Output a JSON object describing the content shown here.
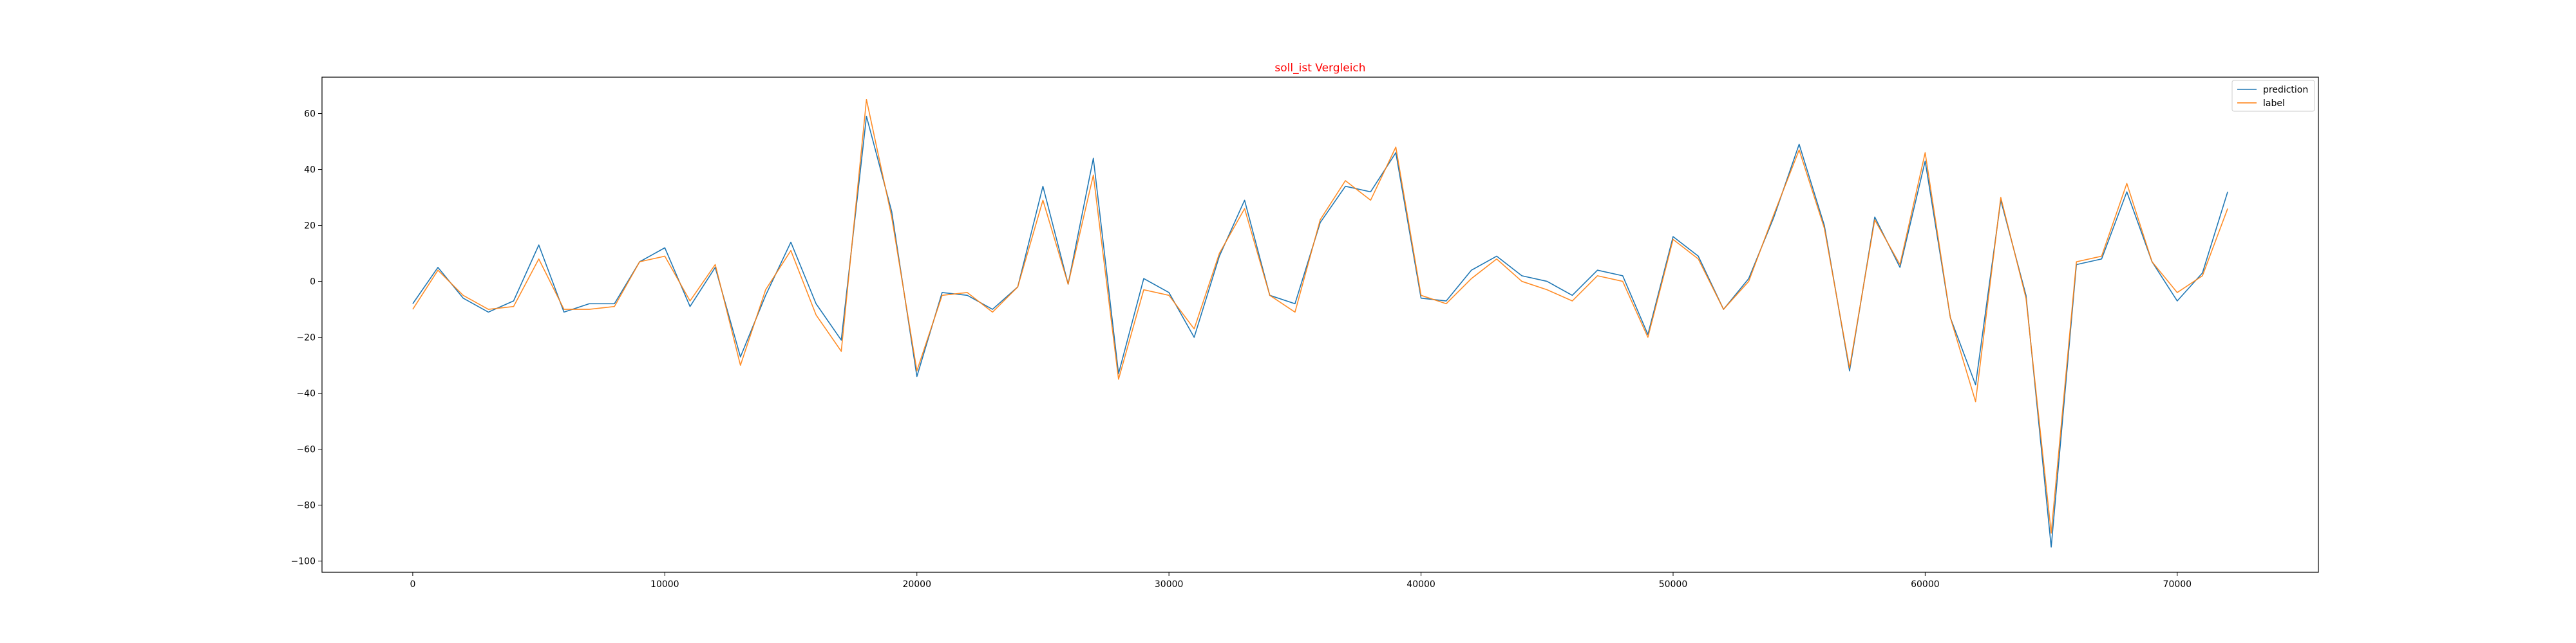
{
  "chart_data": {
    "type": "line",
    "title": "soll_ist Vergleich",
    "title_color": "#ff0000",
    "xlabel": "",
    "ylabel": "",
    "xlim": [
      -3600,
      75600
    ],
    "ylim": [
      -104,
      73
    ],
    "x_ticks": [
      0,
      10000,
      20000,
      30000,
      40000,
      50000,
      60000,
      70000
    ],
    "y_ticks": [
      -100,
      -80,
      -60,
      -40,
      -20,
      0,
      20,
      40,
      60
    ],
    "grid": false,
    "legend_position": "top-right",
    "x": [
      0,
      1000,
      2000,
      3000,
      4000,
      5000,
      6000,
      7000,
      8000,
      9000,
      10000,
      11000,
      12000,
      13000,
      14000,
      15000,
      16000,
      17000,
      18000,
      19000,
      20000,
      21000,
      22000,
      23000,
      24000,
      25000,
      26000,
      27000,
      28000,
      29000,
      30000,
      31000,
      32000,
      33000,
      34000,
      35000,
      36000,
      37000,
      38000,
      39000,
      40000,
      41000,
      42000,
      43000,
      44000,
      45000,
      46000,
      47000,
      48000,
      49000,
      50000,
      51000,
      52000,
      53000,
      54000,
      55000,
      56000,
      57000,
      58000,
      59000,
      60000,
      61000,
      62000,
      63000,
      64000,
      65000,
      66000,
      67000,
      68000,
      69000,
      70000,
      71000,
      72000
    ],
    "series": [
      {
        "name": "prediction",
        "color": "#1f77b4",
        "values": [
          -8,
          5,
          -6,
          -11,
          -7,
          13,
          -11,
          -8,
          -8,
          7,
          12,
          -9,
          5,
          -27,
          -5,
          14,
          -8,
          -21,
          59,
          25,
          -34,
          -4,
          -5,
          -10,
          -2,
          34,
          -1,
          44,
          -33,
          1,
          -4,
          -20,
          9,
          29,
          -5,
          -8,
          21,
          34,
          32,
          46,
          -6,
          -7,
          4,
          9,
          2,
          0,
          -5,
          4,
          2,
          -19,
          16,
          9,
          -10,
          1,
          23,
          49,
          20,
          -32,
          23,
          5,
          43,
          -13,
          -37,
          29,
          -5,
          -95,
          6,
          8,
          32,
          7,
          -7,
          3,
          32
        ]
      },
      {
        "name": "label",
        "color": "#ff7f0e",
        "values": [
          -10,
          4,
          -5,
          -10,
          -9,
          8,
          -10,
          -10,
          -9,
          7,
          9,
          -7,
          6,
          -30,
          -3,
          11,
          -12,
          -25,
          65,
          23,
          -32,
          -5,
          -4,
          -11,
          -2,
          29,
          -1,
          38,
          -35,
          -3,
          -5,
          -17,
          10,
          26,
          -5,
          -11,
          22,
          36,
          29,
          48,
          -5,
          -8,
          1,
          8,
          0,
          -3,
          -7,
          2,
          0,
          -20,
          15,
          8,
          -10,
          0,
          24,
          47,
          19,
          -31,
          22,
          6,
          46,
          -13,
          -43,
          30,
          -6,
          -90,
          7,
          9,
          35,
          7,
          -4,
          2,
          26
        ]
      }
    ]
  }
}
